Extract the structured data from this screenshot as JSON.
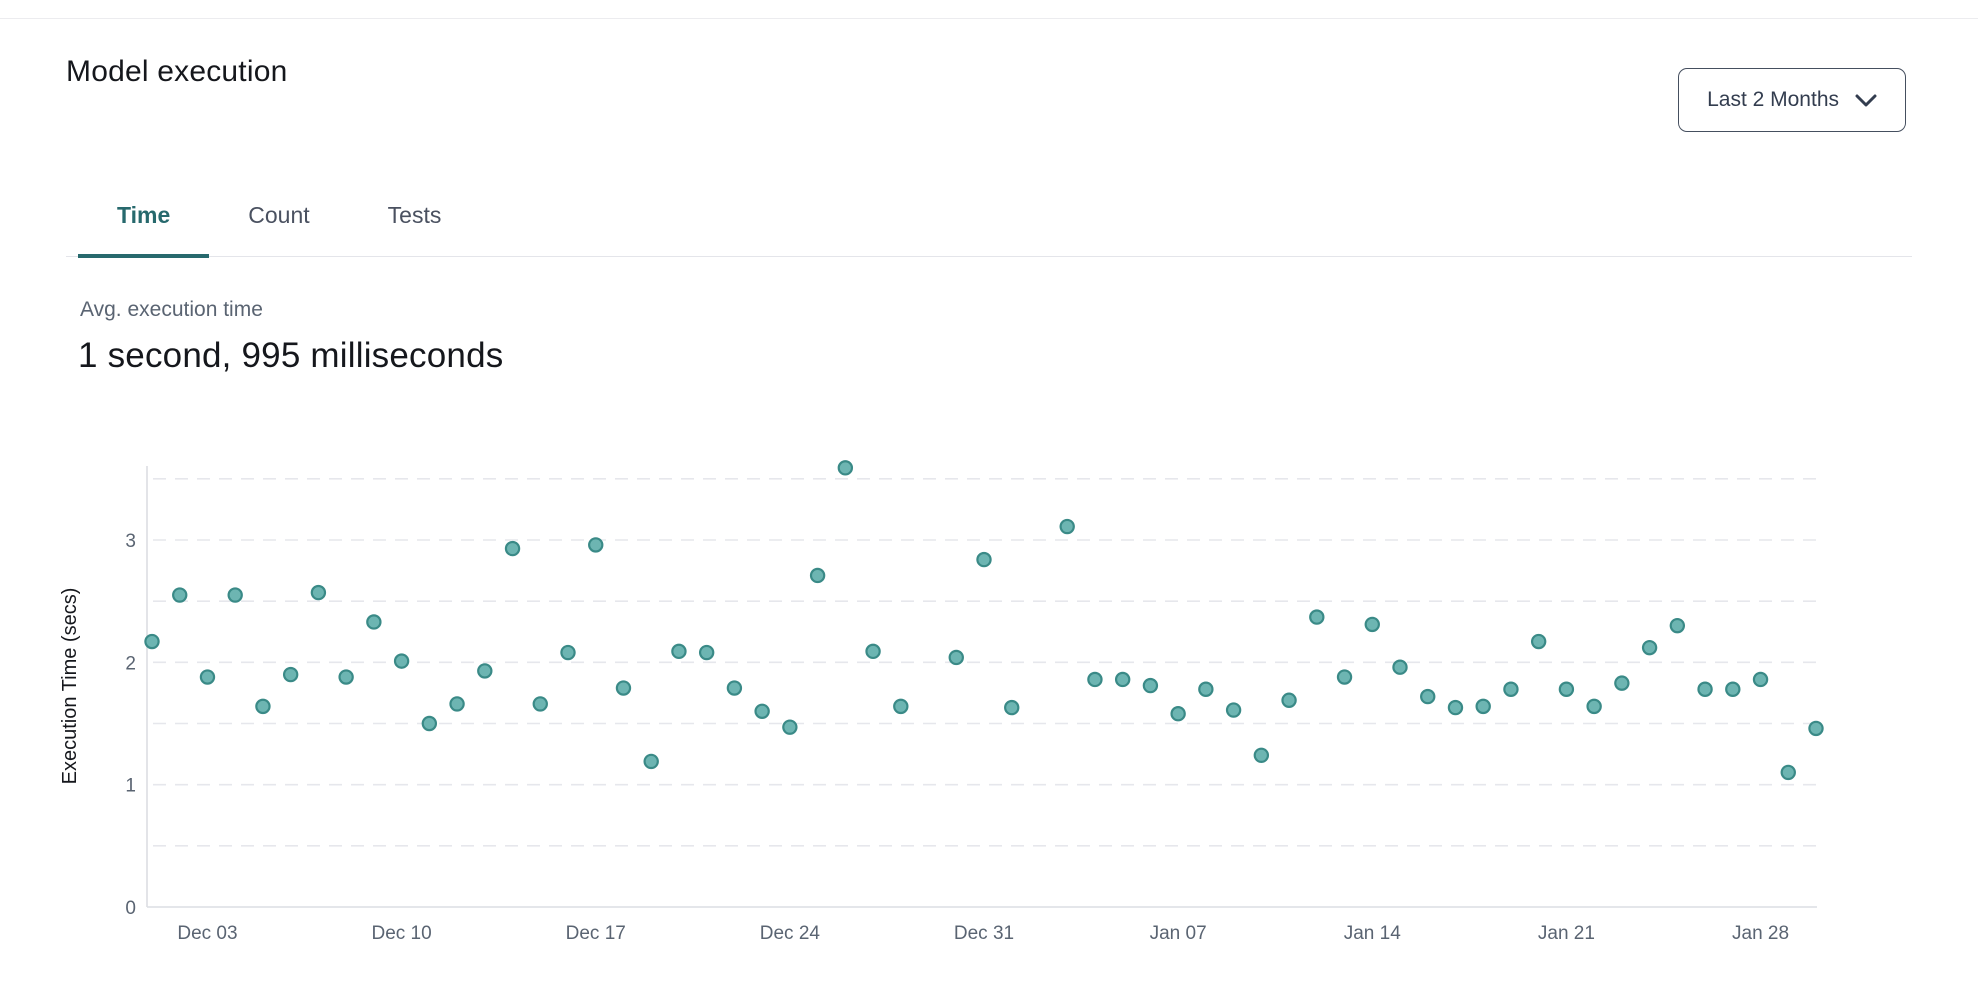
{
  "header": {
    "title": "Model execution",
    "range_selector": {
      "value": "Last 2 Months",
      "icon": "chevron-down-icon"
    }
  },
  "tabs": [
    {
      "label": "Time",
      "active": true
    },
    {
      "label": "Count",
      "active": false
    },
    {
      "label": "Tests",
      "active": false
    }
  ],
  "stats": {
    "label": "Avg. execution time",
    "value": "1 second, 995 milliseconds"
  },
  "theme": {
    "accent_teal": "#27696d",
    "point_fill": "#6db5b2",
    "point_stroke": "#3a8a87",
    "grid_color": "#e6e7ec",
    "axis_color": "#dcdee3",
    "tick_text": "#5a6472"
  },
  "chart_data": {
    "type": "scatter",
    "title": "",
    "xlabel": "",
    "ylabel": "Execution Time (secs)",
    "ylim": [
      0,
      3.65
    ],
    "y_ticks": [
      0,
      1,
      2,
      3
    ],
    "gridline_values": [
      0.5,
      1,
      1.5,
      2,
      2.5,
      3,
      3.5
    ],
    "grid": "dashed-horizontal",
    "legend": "none",
    "x_tick_labels": [
      "Dec 03",
      "Dec 10",
      "Dec 17",
      "Dec 24",
      "Dec 31",
      "Jan 07",
      "Jan 14",
      "Jan 21",
      "Jan 28"
    ],
    "x_tick_days": [
      2,
      9,
      16,
      23,
      30,
      37,
      44,
      51,
      58
    ],
    "points": [
      {
        "date": "Dec 01",
        "day": 0,
        "value": 2.17
      },
      {
        "date": "Dec 02",
        "day": 1,
        "value": 2.55
      },
      {
        "date": "Dec 03",
        "day": 2,
        "value": 1.88
      },
      {
        "date": "Dec 04",
        "day": 3,
        "value": 2.55
      },
      {
        "date": "Dec 05",
        "day": 4,
        "value": 1.64
      },
      {
        "date": "Dec 06",
        "day": 5,
        "value": 1.9
      },
      {
        "date": "Dec 07",
        "day": 6,
        "value": 2.57
      },
      {
        "date": "Dec 08",
        "day": 7,
        "value": 1.88
      },
      {
        "date": "Dec 09",
        "day": 8,
        "value": 2.33
      },
      {
        "date": "Dec 10",
        "day": 9,
        "value": 2.01
      },
      {
        "date": "Dec 11",
        "day": 10,
        "value": 1.5
      },
      {
        "date": "Dec 12",
        "day": 11,
        "value": 1.66
      },
      {
        "date": "Dec 13",
        "day": 12,
        "value": 1.93
      },
      {
        "date": "Dec 14",
        "day": 13,
        "value": 2.93
      },
      {
        "date": "Dec 15",
        "day": 14,
        "value": 1.66
      },
      {
        "date": "Dec 16",
        "day": 15,
        "value": 2.08
      },
      {
        "date": "Dec 17",
        "day": 16,
        "value": 2.96
      },
      {
        "date": "Dec 18",
        "day": 17,
        "value": 1.79
      },
      {
        "date": "Dec 19",
        "day": 18,
        "value": 1.19
      },
      {
        "date": "Dec 20",
        "day": 19,
        "value": 2.09
      },
      {
        "date": "Dec 21",
        "day": 20,
        "value": 2.08
      },
      {
        "date": "Dec 22",
        "day": 21,
        "value": 1.79
      },
      {
        "date": "Dec 23",
        "day": 22,
        "value": 1.6
      },
      {
        "date": "Dec 24",
        "day": 23,
        "value": 1.47
      },
      {
        "date": "Dec 25",
        "day": 24,
        "value": 2.71
      },
      {
        "date": "Dec 26",
        "day": 25,
        "value": 3.59
      },
      {
        "date": "Dec 27",
        "day": 26,
        "value": 2.09
      },
      {
        "date": "Dec 28",
        "day": 27,
        "value": 1.64
      },
      {
        "date": "Dec 30",
        "day": 29,
        "value": 2.04
      },
      {
        "date": "Dec 31",
        "day": 30,
        "value": 2.84
      },
      {
        "date": "Jan 01",
        "day": 31,
        "value": 1.63
      },
      {
        "date": "Jan 03",
        "day": 33,
        "value": 3.11
      },
      {
        "date": "Jan 04",
        "day": 34,
        "value": 1.86
      },
      {
        "date": "Jan 05",
        "day": 35,
        "value": 1.86
      },
      {
        "date": "Jan 06",
        "day": 36,
        "value": 1.81
      },
      {
        "date": "Jan 07",
        "day": 37,
        "value": 1.58
      },
      {
        "date": "Jan 08",
        "day": 38,
        "value": 1.78
      },
      {
        "date": "Jan 09",
        "day": 39,
        "value": 1.61
      },
      {
        "date": "Jan 10",
        "day": 40,
        "value": 1.24
      },
      {
        "date": "Jan 11",
        "day": 41,
        "value": 1.69
      },
      {
        "date": "Jan 12",
        "day": 42,
        "value": 2.37
      },
      {
        "date": "Jan 13",
        "day": 43,
        "value": 1.88
      },
      {
        "date": "Jan 14",
        "day": 44,
        "value": 2.31
      },
      {
        "date": "Jan 15",
        "day": 45,
        "value": 1.96
      },
      {
        "date": "Jan 16",
        "day": 46,
        "value": 1.72
      },
      {
        "date": "Jan 17",
        "day": 47,
        "value": 1.63
      },
      {
        "date": "Jan 18",
        "day": 48,
        "value": 1.64
      },
      {
        "date": "Jan 19",
        "day": 49,
        "value": 1.78
      },
      {
        "date": "Jan 20",
        "day": 50,
        "value": 2.17
      },
      {
        "date": "Jan 21",
        "day": 51,
        "value": 1.78
      },
      {
        "date": "Jan 22",
        "day": 52,
        "value": 1.64
      },
      {
        "date": "Jan 23",
        "day": 53,
        "value": 1.83
      },
      {
        "date": "Jan 24",
        "day": 54,
        "value": 2.12
      },
      {
        "date": "Jan 25",
        "day": 55,
        "value": 2.3
      },
      {
        "date": "Jan 26",
        "day": 56,
        "value": 1.78
      },
      {
        "date": "Jan 27",
        "day": 57,
        "value": 1.78
      },
      {
        "date": "Jan 28",
        "day": 58,
        "value": 1.86
      },
      {
        "date": "Jan 29",
        "day": 59,
        "value": 1.1
      },
      {
        "date": "Jan 30",
        "day": 60,
        "value": 1.46
      }
    ]
  }
}
